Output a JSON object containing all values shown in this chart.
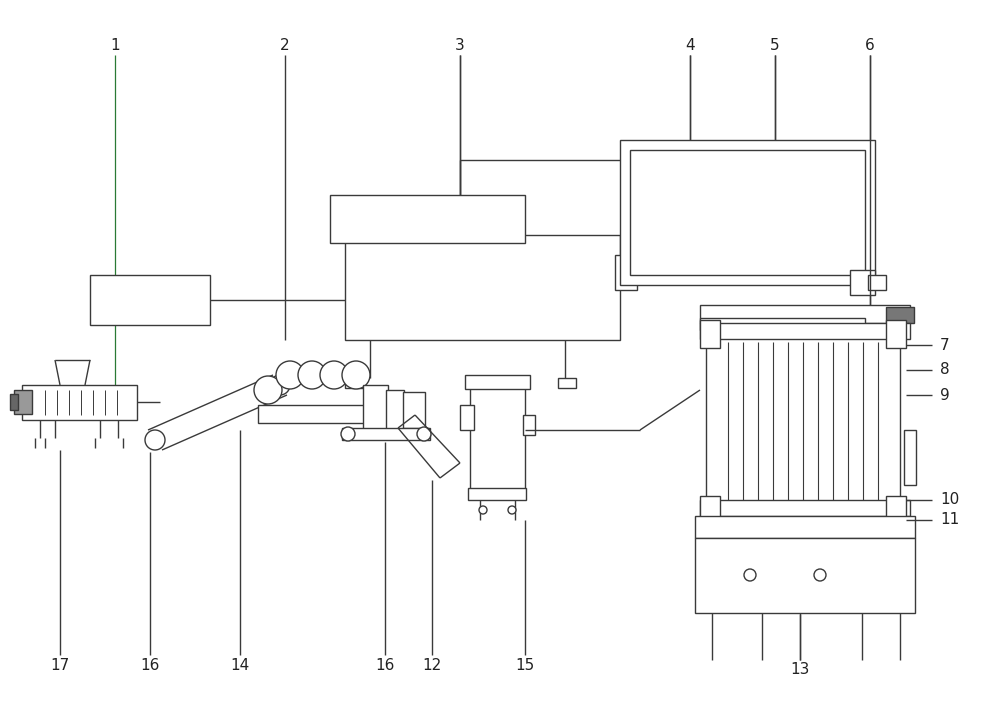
{
  "bg_color": "#ffffff",
  "line_color": "#3a3a3a",
  "line_width": 1.0,
  "label_color": "#222222",
  "label_fontsize": 11,
  "figsize": [
    10.0,
    7.05
  ],
  "dpi": 100
}
